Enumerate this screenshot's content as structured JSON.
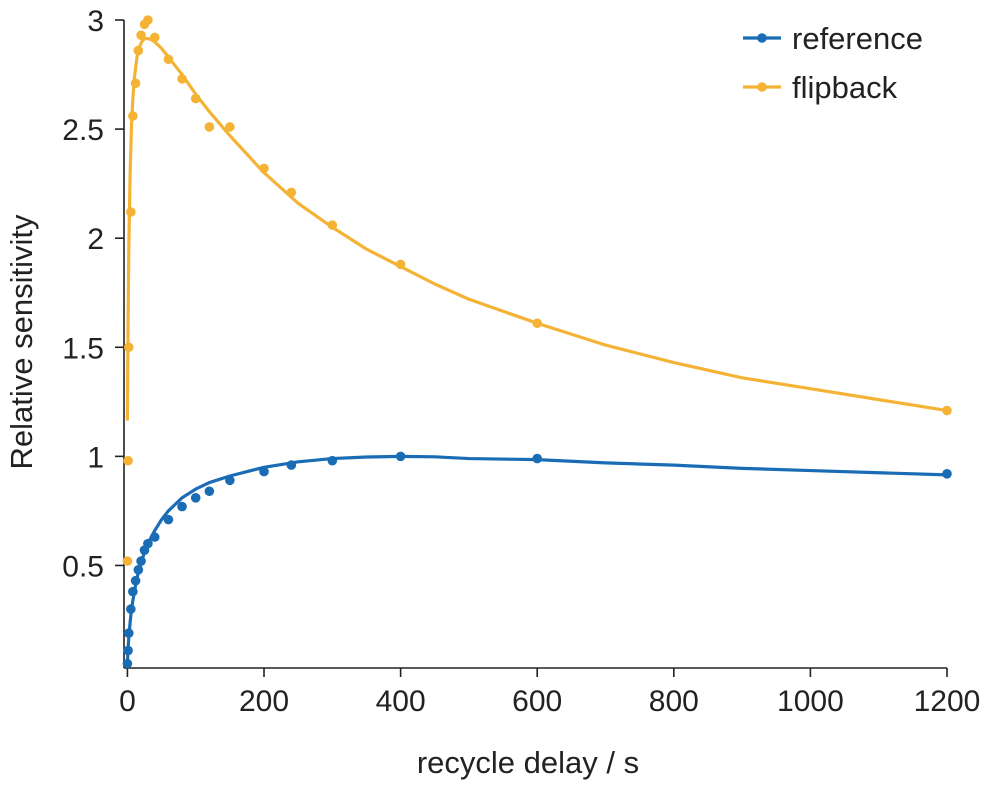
{
  "chart_data": {
    "type": "line",
    "title": "",
    "xlabel": "recycle delay / s",
    "ylabel": "Relative sensitivity",
    "xlim": [
      -5,
      1200
    ],
    "ylim": [
      0.03,
      3
    ],
    "xticks": [
      0,
      200,
      400,
      600,
      800,
      1000,
      1200
    ],
    "xtick_labels": [
      "0",
      "200",
      "400",
      "600",
      "800",
      "1000",
      "1200"
    ],
    "yticks": [
      0.5,
      1,
      1.5,
      2,
      2.5,
      3
    ],
    "ytick_labels": [
      "0.5",
      "1",
      "1.5",
      "2",
      "2.5",
      "3"
    ],
    "legend_position": "top-right",
    "series": [
      {
        "name": "reference",
        "color": "#1a6db5",
        "points": {
          "x": [
            0,
            1,
            2,
            5,
            8,
            12,
            16,
            20,
            25,
            30,
            40,
            60,
            80,
            100,
            120,
            150,
            200,
            240,
            300,
            400,
            600,
            1200
          ],
          "y": [
            0.05,
            0.11,
            0.19,
            0.3,
            0.38,
            0.43,
            0.48,
            0.52,
            0.57,
            0.6,
            0.63,
            0.71,
            0.77,
            0.81,
            0.84,
            0.89,
            0.93,
            0.96,
            0.98,
            1.0,
            0.99,
            0.92
          ]
        },
        "fit": {
          "x": [
            0,
            1,
            2,
            4,
            6,
            8,
            12,
            16,
            20,
            25,
            30,
            40,
            50,
            60,
            80,
            100,
            120,
            150,
            200,
            250,
            300,
            350,
            400,
            450,
            500,
            600,
            700,
            800,
            900,
            1000,
            1100,
            1200
          ],
          "y": [
            0.05,
            0.12,
            0.17,
            0.24,
            0.3,
            0.34,
            0.41,
            0.47,
            0.51,
            0.56,
            0.6,
            0.66,
            0.71,
            0.75,
            0.81,
            0.85,
            0.88,
            0.91,
            0.95,
            0.975,
            0.99,
            0.997,
            1.0,
            0.998,
            0.99,
            0.985,
            0.97,
            0.96,
            0.945,
            0.935,
            0.925,
            0.915
          ]
        }
      },
      {
        "name": "flipback",
        "color": "#f5b335",
        "points": {
          "x": [
            0,
            1,
            2,
            5,
            8,
            12,
            16,
            20,
            25,
            30,
            40,
            60,
            80,
            100,
            120,
            150,
            200,
            240,
            300,
            400,
            600,
            1200
          ],
          "y": [
            0.52,
            0.98,
            1.5,
            2.12,
            2.56,
            2.71,
            2.86,
            2.93,
            2.98,
            3.0,
            2.92,
            2.82,
            2.73,
            2.64,
            2.51,
            2.51,
            2.32,
            2.21,
            2.06,
            1.88,
            1.61,
            1.21
          ]
        },
        "fit": {
          "x": [
            0,
            1,
            2,
            4,
            6,
            8,
            10,
            14,
            18,
            22,
            26,
            30,
            35,
            40,
            45,
            50,
            60,
            70,
            80,
            100,
            120,
            150,
            200,
            250,
            300,
            350,
            400,
            450,
            500,
            600,
            700,
            800,
            900,
            1000,
            1100,
            1200
          ],
          "y": [
            1.17,
            1.62,
            1.95,
            2.3,
            2.52,
            2.64,
            2.73,
            2.83,
            2.88,
            2.906,
            2.915,
            2.915,
            2.91,
            2.9,
            2.885,
            2.87,
            2.83,
            2.79,
            2.75,
            2.66,
            2.58,
            2.47,
            2.3,
            2.16,
            2.05,
            1.95,
            1.87,
            1.79,
            1.72,
            1.61,
            1.51,
            1.43,
            1.36,
            1.31,
            1.26,
            1.21
          ]
        }
      }
    ]
  }
}
